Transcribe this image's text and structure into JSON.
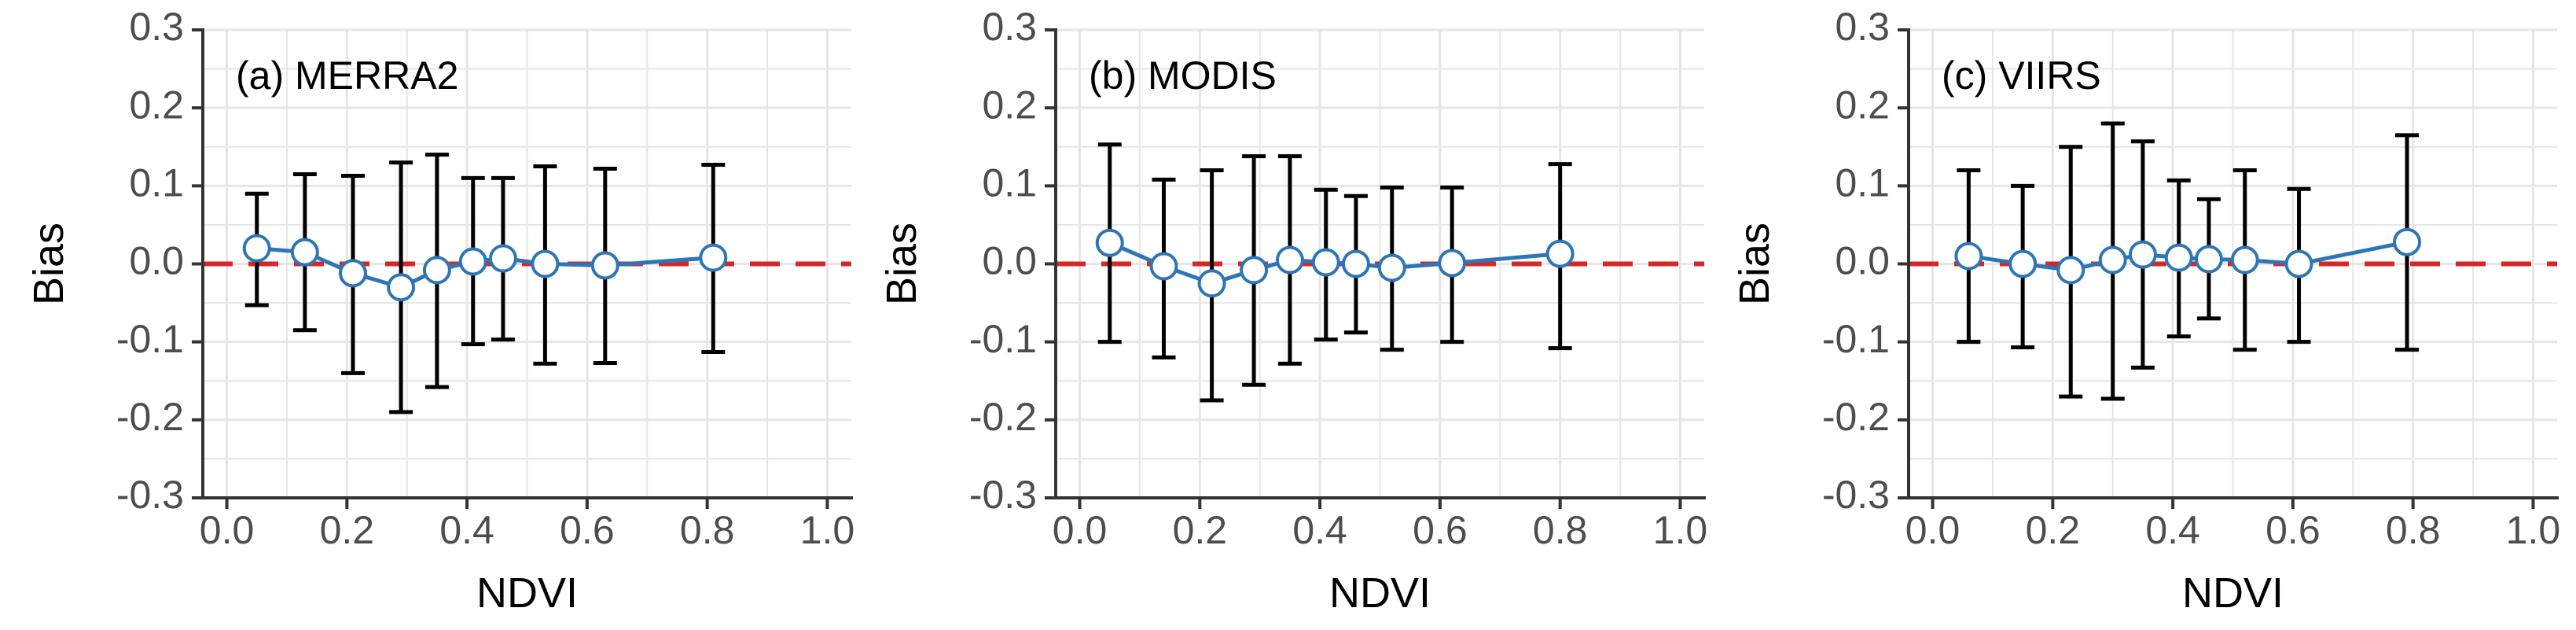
{
  "colors": {
    "series": "#2E75B6",
    "zero_line": "#D62728",
    "error_bar": "#000000",
    "marker_fill": "#FFFFFF",
    "grid": "#E6E6E6",
    "axis": "#333333",
    "tick_text": "#4D4D4D"
  },
  "chart_data": [
    {
      "type": "scatter",
      "panel_label": "(a) MERRA2",
      "xlabel": "NDVI",
      "ylabel": "Bias",
      "xlim": [
        -0.04,
        1.04
      ],
      "ylim": [
        -0.3,
        0.3
      ],
      "xticks": [
        "0.0",
        "0.2",
        "0.4",
        "0.6",
        "0.8",
        "1.0"
      ],
      "yticks": [
        "0.3",
        "0.2",
        "0.1",
        "0.0",
        "-0.1",
        "-0.2",
        "-0.3"
      ],
      "reference_line": 0,
      "x": [
        0.05,
        0.13,
        0.21,
        0.29,
        0.35,
        0.41,
        0.46,
        0.53,
        0.63,
        0.81
      ],
      "y": [
        0.02,
        0.015,
        -0.012,
        -0.03,
        -0.008,
        0.003,
        0.007,
        0.0,
        -0.002,
        0.008
      ],
      "err_lower": [
        -0.053,
        -0.085,
        -0.14,
        -0.19,
        -0.158,
        -0.103,
        -0.097,
        -0.128,
        -0.127,
        -0.113
      ],
      "err_upper": [
        0.09,
        0.115,
        0.113,
        0.13,
        0.14,
        0.11,
        0.11,
        0.125,
        0.122,
        0.127
      ]
    },
    {
      "type": "scatter",
      "panel_label": "(b) MODIS",
      "xlabel": "NDVI",
      "ylabel": "Bias",
      "xlim": [
        -0.04,
        1.04
      ],
      "ylim": [
        -0.3,
        0.3
      ],
      "xticks": [
        "0.0",
        "0.2",
        "0.4",
        "0.6",
        "0.8",
        "1.0"
      ],
      "yticks": [
        "0.3",
        "0.2",
        "0.1",
        "0.0",
        "-0.1",
        "-0.2",
        "-0.3"
      ],
      "reference_line": 0,
      "x": [
        0.05,
        0.14,
        0.22,
        0.29,
        0.35,
        0.41,
        0.46,
        0.52,
        0.62,
        0.8
      ],
      "y": [
        0.027,
        -0.003,
        -0.025,
        -0.008,
        0.005,
        0.002,
        0.0,
        -0.005,
        0.001,
        0.013
      ],
      "err_lower": [
        -0.1,
        -0.12,
        -0.175,
        -0.155,
        -0.128,
        -0.097,
        -0.088,
        -0.11,
        -0.1,
        -0.108
      ],
      "err_upper": [
        0.153,
        0.108,
        0.12,
        0.138,
        0.138,
        0.095,
        0.087,
        0.098,
        0.098,
        0.128
      ]
    },
    {
      "type": "scatter",
      "panel_label": "(c) VIIRS",
      "xlabel": "NDVI",
      "ylabel": "Bias",
      "xlim": [
        -0.04,
        1.04
      ],
      "ylim": [
        -0.3,
        0.3
      ],
      "xticks": [
        "0.0",
        "0.2",
        "0.4",
        "0.6",
        "0.8",
        "1.0"
      ],
      "yticks": [
        "0.3",
        "0.2",
        "0.1",
        "0.0",
        "-0.1",
        "-0.2",
        "-0.3"
      ],
      "reference_line": 0,
      "x": [
        0.06,
        0.15,
        0.23,
        0.3,
        0.35,
        0.41,
        0.46,
        0.52,
        0.61,
        0.79
      ],
      "y": [
        0.01,
        0.0,
        -0.008,
        0.005,
        0.012,
        0.008,
        0.006,
        0.005,
        0.0,
        0.028
      ],
      "err_lower": [
        -0.1,
        -0.107,
        -0.17,
        -0.173,
        -0.133,
        -0.093,
        -0.07,
        -0.11,
        -0.1,
        -0.11
      ],
      "err_upper": [
        0.12,
        0.1,
        0.15,
        0.18,
        0.157,
        0.107,
        0.083,
        0.12,
        0.096,
        0.165
      ]
    }
  ]
}
